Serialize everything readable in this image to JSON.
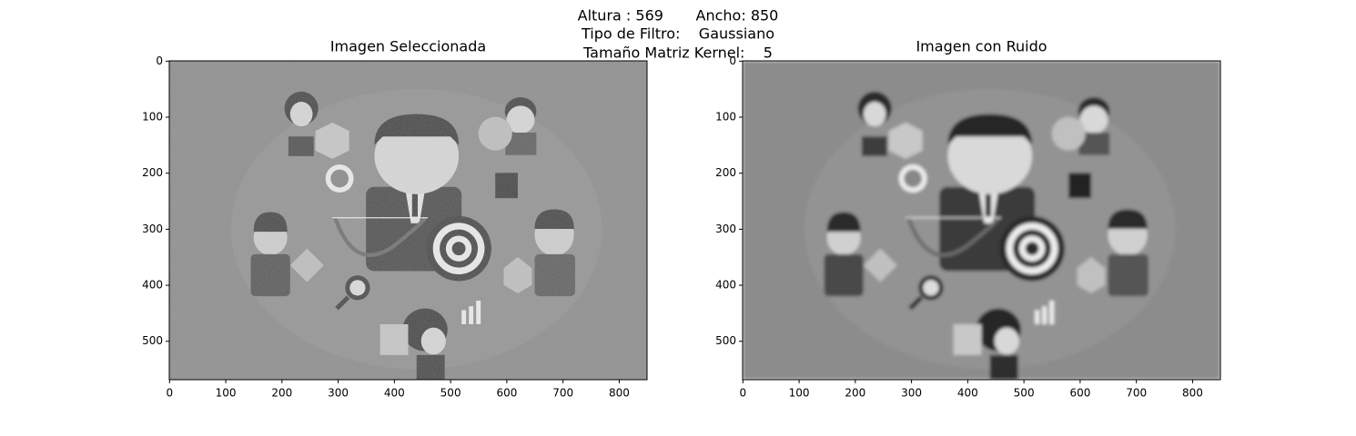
{
  "title": [
    "Altura : 569       Ancho: 850",
    "Tipo de Filtro:    Gaussiano",
    "Tamaño Matriz Kernel:    5"
  ],
  "chart_data": [
    {
      "type": "image",
      "title": "Imagen Seleccionada",
      "xlim": [
        -0.5,
        849.5
      ],
      "ylim": [
        568.5,
        -0.5
      ],
      "xticks": [
        0,
        100,
        200,
        300,
        400,
        500,
        600,
        700,
        800
      ],
      "yticks": [
        0,
        100,
        200,
        300,
        400,
        500
      ],
      "filter": "noise"
    },
    {
      "type": "image",
      "title": "Imagen con Ruido",
      "xlim": [
        -0.5,
        849.5
      ],
      "ylim": [
        568.5,
        -0.5
      ],
      "xticks": [
        0,
        100,
        200,
        300,
        400,
        500,
        600,
        700,
        800
      ],
      "yticks": [
        0,
        100,
        200,
        300,
        400,
        500
      ],
      "filter": "blur"
    }
  ]
}
